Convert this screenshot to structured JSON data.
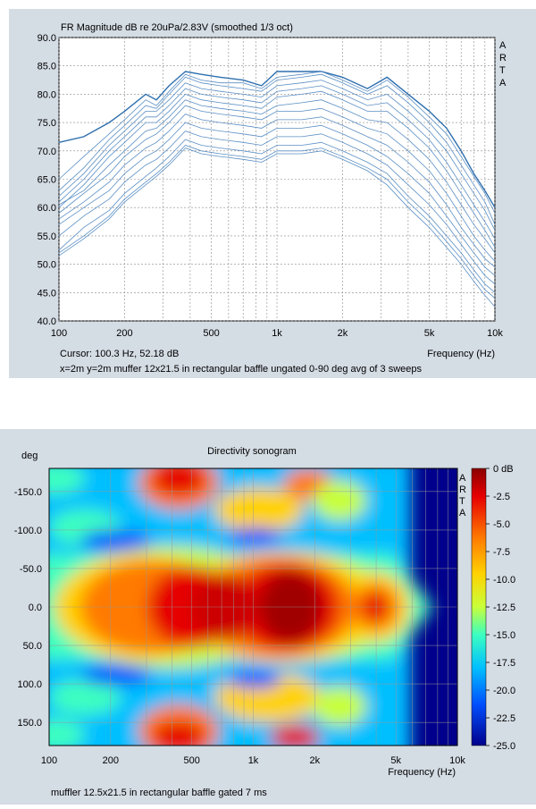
{
  "chart_data": [
    {
      "type": "line",
      "title": "FR Magnitude dB re 20uPa/2.83V (smoothed 1/3 oct)",
      "xlabel": "Frequency (Hz)",
      "xscale": "log",
      "xlim": [
        100,
        10000
      ],
      "ylim": [
        40,
        90
      ],
      "yticks": [
        "90.0",
        "85.0",
        "80.0",
        "75.0",
        "70.0",
        "65.0",
        "60.0",
        "55.0",
        "50.0",
        "45.0",
        "40.0"
      ],
      "xticks": [
        "100",
        "200",
        "500",
        "1k",
        "2k",
        "5k",
        "10k"
      ],
      "cursor_text": "Cursor: 100.3 Hz, 52.18 dB",
      "caption": "x=2m y=2m muffer 12x21.5 in rectangular baffle ungated 0-90 deg avg of 3 sweeps",
      "brand": [
        "A",
        "R",
        "T",
        "A"
      ],
      "grid": true,
      "series_color": "#5b8fc4",
      "frequencies": [
        100,
        130,
        170,
        200,
        250,
        280,
        320,
        380,
        450,
        550,
        700,
        850,
        1000,
        1300,
        1600,
        2000,
        2600,
        3200,
        4000,
        5000,
        6000,
        7000,
        8000,
        9000,
        10000
      ],
      "series": [
        {
          "values": [
            71.5,
            72.5,
            75.0,
            77.0,
            80.0,
            79.0,
            81.5,
            84.0,
            83.5,
            83.0,
            82.5,
            81.5,
            84.0,
            84.0,
            84.0,
            83.0,
            81.0,
            83.0,
            80.0,
            77.0,
            74.0,
            70.0,
            66.0,
            63.0,
            60.0
          ]
        },
        {
          "values": [
            65.0,
            69.0,
            73.0,
            75.5,
            79.0,
            78.0,
            80.5,
            83.5,
            82.5,
            82.0,
            82.0,
            81.0,
            83.0,
            83.5,
            84.0,
            82.5,
            80.5,
            82.5,
            79.5,
            76.0,
            73.0,
            69.0,
            65.5,
            62.5,
            59.0
          ]
        },
        {
          "values": [
            63.0,
            67.0,
            72.0,
            74.5,
            78.0,
            77.5,
            80.0,
            83.0,
            82.0,
            81.5,
            81.0,
            80.5,
            82.5,
            83.0,
            83.5,
            82.0,
            80.0,
            81.5,
            78.5,
            75.0,
            71.5,
            67.5,
            64.0,
            61.0,
            57.0
          ]
        },
        {
          "values": [
            62.0,
            66.0,
            71.0,
            73.5,
            77.0,
            77.0,
            79.0,
            82.0,
            81.0,
            80.5,
            80.0,
            79.5,
            81.5,
            82.0,
            82.5,
            81.0,
            79.0,
            80.0,
            77.0,
            73.5,
            70.0,
            66.0,
            62.5,
            59.5,
            56.0
          ]
        },
        {
          "values": [
            61.0,
            65.0,
            70.0,
            72.5,
            76.0,
            76.0,
            78.0,
            81.0,
            80.0,
            79.5,
            79.0,
            78.5,
            80.5,
            81.0,
            81.5,
            80.0,
            78.0,
            78.5,
            75.5,
            72.0,
            68.0,
            64.0,
            60.5,
            57.5,
            54.5
          ]
        },
        {
          "values": [
            60.0,
            64.0,
            69.0,
            71.5,
            75.0,
            75.0,
            77.0,
            80.0,
            79.0,
            78.5,
            78.0,
            77.5,
            79.5,
            80.0,
            80.5,
            79.0,
            77.0,
            77.0,
            74.0,
            70.5,
            66.5,
            62.5,
            59.0,
            56.0,
            53.0
          ]
        },
        {
          "values": [
            60.5,
            63.0,
            67.5,
            70.0,
            73.5,
            74.0,
            76.0,
            79.0,
            78.0,
            77.5,
            77.0,
            76.5,
            78.0,
            78.5,
            79.0,
            77.5,
            75.5,
            75.0,
            72.0,
            68.5,
            64.5,
            60.5,
            57.0,
            54.5,
            52.0
          ]
        },
        {
          "values": [
            59.0,
            62.5,
            66.0,
            69.0,
            72.0,
            73.0,
            75.0,
            78.0,
            77.0,
            76.5,
            76.0,
            75.5,
            77.0,
            77.0,
            77.5,
            76.0,
            74.0,
            73.0,
            70.0,
            66.5,
            62.5,
            58.5,
            55.0,
            52.5,
            50.5
          ]
        },
        {
          "values": [
            58.0,
            61.0,
            64.5,
            67.5,
            70.5,
            71.5,
            73.5,
            76.5,
            75.5,
            75.0,
            74.5,
            74.0,
            75.5,
            75.5,
            76.0,
            74.5,
            72.5,
            71.0,
            68.0,
            64.5,
            60.5,
            56.5,
            53.5,
            51.0,
            49.5
          ]
        },
        {
          "values": [
            57.0,
            60.0,
            63.0,
            66.0,
            69.0,
            70.0,
            72.0,
            75.0,
            74.0,
            73.5,
            73.0,
            72.5,
            74.0,
            74.0,
            74.5,
            73.0,
            71.0,
            69.0,
            66.0,
            62.5,
            58.5,
            55.0,
            52.0,
            49.5,
            48.0
          ]
        },
        {
          "values": [
            55.0,
            58.5,
            61.5,
            64.5,
            67.5,
            68.5,
            70.5,
            73.5,
            72.5,
            72.0,
            71.5,
            71.0,
            72.5,
            72.5,
            73.0,
            71.5,
            69.5,
            67.5,
            64.0,
            60.5,
            57.0,
            53.5,
            50.5,
            48.0,
            46.5
          ]
        },
        {
          "values": [
            52.5,
            56.5,
            59.5,
            62.5,
            65.5,
            67.0,
            69.0,
            72.0,
            71.0,
            70.5,
            70.0,
            69.5,
            71.0,
            71.0,
            71.5,
            70.0,
            68.0,
            66.0,
            62.0,
            58.5,
            55.0,
            52.0,
            49.0,
            46.5,
            45.0
          ]
        },
        {
          "values": [
            52.0,
            55.0,
            58.5,
            61.5,
            64.5,
            66.0,
            68.0,
            71.0,
            70.0,
            69.5,
            69.0,
            68.5,
            70.0,
            70.0,
            70.5,
            69.0,
            67.0,
            65.0,
            61.0,
            57.5,
            54.0,
            51.0,
            48.0,
            45.5,
            44.0
          ]
        },
        {
          "values": [
            51.5,
            54.5,
            58.0,
            61.0,
            64.0,
            65.5,
            67.5,
            70.5,
            69.5,
            69.0,
            68.5,
            68.0,
            69.5,
            69.5,
            70.0,
            68.5,
            66.5,
            64.0,
            60.0,
            56.5,
            53.0,
            50.0,
            47.0,
            44.5,
            42.5
          ]
        }
      ]
    },
    {
      "type": "heatmap",
      "title": "Directivity sonogram",
      "ylabel": "deg",
      "xlabel": "Frequency (Hz)",
      "xscale": "log",
      "xlim": [
        100,
        10000
      ],
      "ylim": [
        -180,
        180
      ],
      "yticks": [
        "-150.0",
        "-100.0",
        "-50.0",
        "0.0",
        "50.0",
        "100.0",
        "150.0"
      ],
      "xticks": [
        "100",
        "200",
        "500",
        "1k",
        "2k",
        "5k",
        "10k"
      ],
      "colorbar_labels": [
        "0 dB",
        "-2.5",
        "-5.0",
        "-7.5",
        "-10.0",
        "-12.5",
        "-15.0",
        "-17.5",
        "-20.0",
        "-22.5",
        "-25.0"
      ],
      "colorbar_range": [
        -25,
        0
      ],
      "caption": "muffler 12.5x21.5 in rectangular baffle gated 7 ms",
      "brand": [
        "A",
        "R",
        "T",
        "A"
      ]
    }
  ]
}
